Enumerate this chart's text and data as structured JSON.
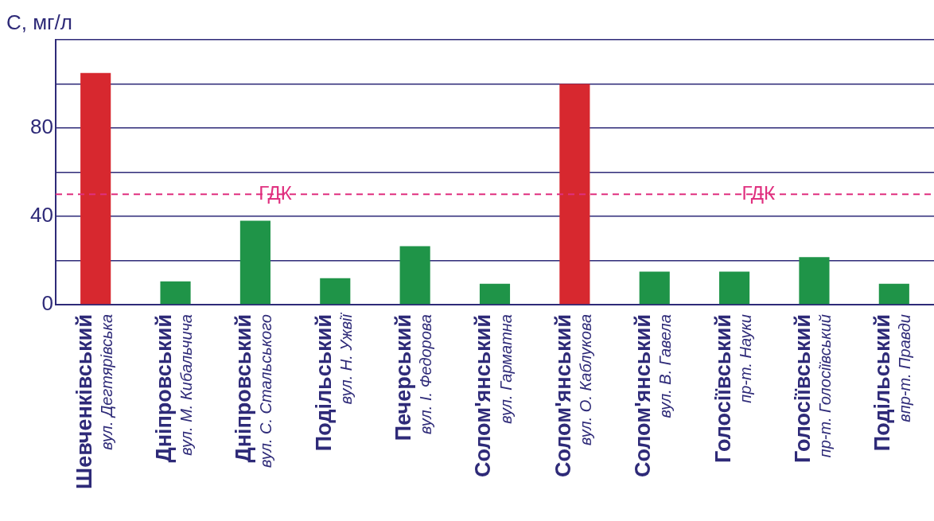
{
  "chart_data": {
    "type": "bar",
    "ylabel": "C, мг/л",
    "categories": [
      "Шевченківський\nвул. Дегтярівська",
      "Дніпровський\nвул. М. Кибальчича",
      "Дніпровський\nвул. С. Стальського",
      "Подільський\nвул. Н. Ужвії",
      "Печерський\nвул. І. Федорова",
      "Солом'янський\nвул. Гарматна",
      "Солом'янський\nвул. О. Каблукова",
      "Солом'янський\nвул. В. Гавела",
      "Голосіївський\nпр-т. Науки",
      "Голосіївський\nпр-т. Голосіївський",
      "Подільський\nвпр-т. Правди"
    ],
    "values": [
      105,
      10.5,
      38,
      12,
      26.5,
      9.5,
      100,
      15,
      15,
      21.5,
      9.5
    ],
    "colors": [
      "#d7282f",
      "#1f9448",
      "#1f9448",
      "#1f9448",
      "#1f9448",
      "#1f9448",
      "#d7282f",
      "#1f9448",
      "#1f9448",
      "#1f9448",
      "#1f9448"
    ],
    "ylim": [
      0,
      120
    ],
    "yticks": [
      0,
      {
        "value": 20,
        "label": null
      },
      40,
      {
        "value": 60,
        "label": null
      },
      80,
      {
        "value": 100,
        "label": null
      },
      {
        "value": 120,
        "label": null
      }
    ],
    "grid": "y",
    "legend": false,
    "ref_lines": [
      {
        "axis": "y",
        "value": 50,
        "label": "ГДК",
        "color": "#e0307f",
        "line_style": "dashed"
      }
    ]
  }
}
